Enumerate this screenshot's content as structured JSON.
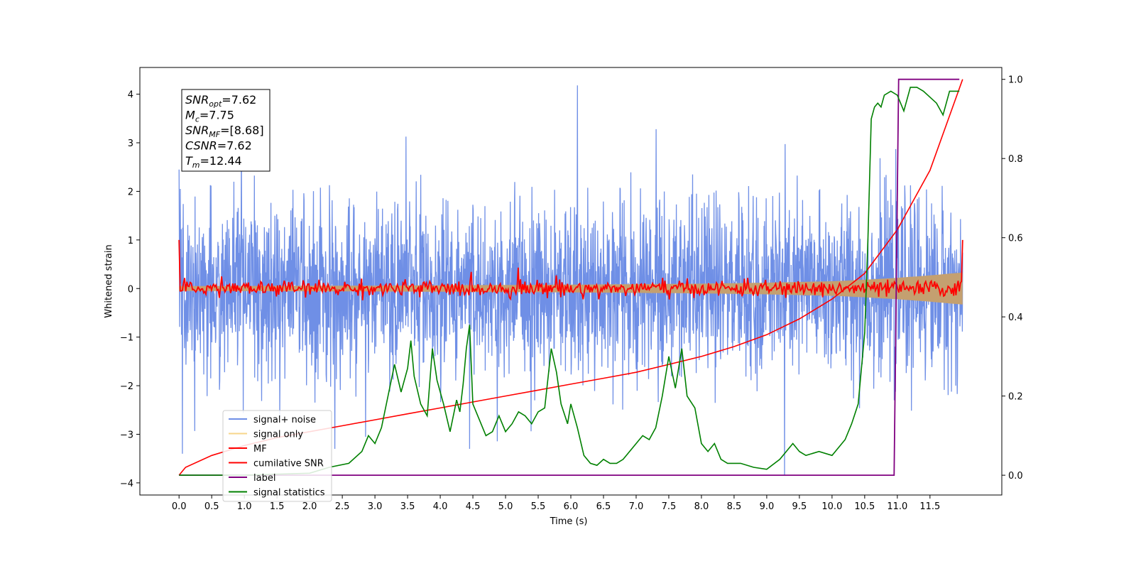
{
  "chart_data": {
    "type": "line",
    "xlabel": "Time (s)",
    "ylabel": "Whitened strain",
    "y2label": "",
    "xlim": [
      -0.6,
      12.6
    ],
    "ylim": [
      -4.25,
      4.55
    ],
    "y2lim": [
      -0.05,
      1.03
    ],
    "xticks": [
      "0.0",
      "0.5",
      "1.0",
      "1.5",
      "2.0",
      "2.5",
      "3.0",
      "3.5",
      "4.0",
      "4.5",
      "5.0",
      "5.5",
      "6.0",
      "6.5",
      "7.0",
      "7.5",
      "8.0",
      "8.5",
      "9.0",
      "9.5",
      "10.0",
      "10.5",
      "11.0",
      "11.5"
    ],
    "yticks": [
      "4",
      "3",
      "2",
      "1",
      "0",
      "−1",
      "−2",
      "−3",
      "−4"
    ],
    "y2ticks": [
      "1.0",
      "0.8",
      "0.6",
      "0.4",
      "0.2",
      "0.0"
    ],
    "grid": false,
    "legend_position": "lower-left",
    "annotation": {
      "lines": [
        {
          "name": "SNR",
          "sub": "opt",
          "value": "=7.62"
        },
        {
          "name": "M",
          "sub": "c",
          "value": "=7.75"
        },
        {
          "name": "SNR",
          "sub": "MF",
          "value": "=[8.68]"
        },
        {
          "name": "CSNR",
          "sub": "",
          "value": "=7.62"
        },
        {
          "name": "T",
          "sub": "m",
          "value": "=12.44"
        }
      ]
    },
    "series": [
      {
        "name": "signal+ noise",
        "color": "#6f8fe6",
        "axis": "left",
        "description_type": "noise",
        "x_range": [
          0.0,
          12.0
        ],
        "std": 0.9,
        "extremes": [
          [
            0.0,
            2.45
          ],
          [
            0.05,
            -3.4
          ],
          [
            6.1,
            4.18
          ],
          [
            9.27,
            -3.85
          ],
          [
            4.45,
            -3.3
          ],
          [
            10.95,
            -2.3
          ]
        ]
      },
      {
        "name": "signal only",
        "color": "#f0c060",
        "axis": "left",
        "x_range": [
          0.0,
          12.0
        ],
        "envelope": [
          [
            0.0,
            0.05
          ],
          [
            3.0,
            0.06
          ],
          [
            6.0,
            0.08
          ],
          [
            8.0,
            0.1
          ],
          [
            9.0,
            0.12
          ],
          [
            10.0,
            0.15
          ],
          [
            10.5,
            0.18
          ],
          [
            11.0,
            0.22
          ],
          [
            11.5,
            0.27
          ],
          [
            12.0,
            0.33
          ]
        ]
      },
      {
        "name": "MF",
        "color": "#ff0000",
        "axis": "left",
        "x_range": [
          0.0,
          12.0
        ],
        "start_value": 1.0,
        "end_value": 1.0,
        "std": 0.08,
        "spikes": [
          [
            5.2,
            0.43
          ],
          [
            5.78,
            0.27
          ],
          [
            0.65,
            0.25
          ],
          [
            3.68,
            -0.18
          ],
          [
            7.4,
            0.22
          ]
        ]
      },
      {
        "name": "cumilative SNR",
        "color": "#ff0000",
        "axis": "right",
        "x": [
          0.0,
          0.1,
          0.5,
          1.0,
          1.5,
          2.0,
          2.5,
          3.0,
          3.5,
          4.0,
          4.5,
          5.0,
          5.5,
          6.0,
          6.5,
          7.0,
          7.5,
          8.0,
          8.5,
          9.0,
          9.5,
          10.0,
          10.5,
          11.0,
          11.5,
          12.0
        ],
        "y": [
          0.0,
          0.02,
          0.05,
          0.075,
          0.095,
          0.11,
          0.125,
          0.14,
          0.155,
          0.17,
          0.185,
          0.2,
          0.215,
          0.23,
          0.245,
          0.26,
          0.28,
          0.3,
          0.325,
          0.355,
          0.395,
          0.445,
          0.51,
          0.62,
          0.77,
          1.0
        ]
      },
      {
        "name": "label",
        "color": "#800080",
        "axis": "right",
        "x": [
          0.0,
          10.95,
          11.02,
          11.95
        ],
        "y": [
          0.0,
          0.0,
          1.0,
          1.0
        ]
      },
      {
        "name": "signal statistics",
        "color": "#008000",
        "axis": "right",
        "x": [
          0.0,
          1.0,
          2.0,
          2.3,
          2.6,
          2.8,
          2.9,
          3.0,
          3.1,
          3.2,
          3.3,
          3.4,
          3.5,
          3.55,
          3.6,
          3.7,
          3.8,
          3.88,
          3.95,
          4.05,
          4.15,
          4.25,
          4.3,
          4.35,
          4.4,
          4.45,
          4.5,
          4.6,
          4.7,
          4.8,
          4.9,
          5.0,
          5.1,
          5.2,
          5.3,
          5.4,
          5.5,
          5.6,
          5.7,
          5.78,
          5.85,
          5.95,
          6.0,
          6.1,
          6.2,
          6.3,
          6.4,
          6.5,
          6.6,
          6.7,
          6.8,
          7.0,
          7.1,
          7.2,
          7.3,
          7.4,
          7.5,
          7.6,
          7.7,
          7.78,
          7.9,
          8.0,
          8.1,
          8.2,
          8.3,
          8.4,
          8.6,
          8.8,
          9.0,
          9.2,
          9.4,
          9.5,
          9.6,
          9.8,
          10.0,
          10.2,
          10.3,
          10.4,
          10.5,
          10.55,
          10.6,
          10.65,
          10.7,
          10.75,
          10.8,
          10.9,
          11.0,
          11.1,
          11.2,
          11.3,
          11.4,
          11.6,
          11.7,
          11.8,
          11.9,
          11.95
        ],
        "y": [
          0.0,
          0.0,
          0.005,
          0.02,
          0.03,
          0.06,
          0.1,
          0.08,
          0.12,
          0.2,
          0.28,
          0.21,
          0.27,
          0.34,
          0.25,
          0.18,
          0.15,
          0.32,
          0.24,
          0.18,
          0.11,
          0.19,
          0.16,
          0.23,
          0.32,
          0.38,
          0.18,
          0.14,
          0.1,
          0.11,
          0.15,
          0.11,
          0.13,
          0.16,
          0.15,
          0.13,
          0.16,
          0.17,
          0.32,
          0.26,
          0.18,
          0.13,
          0.18,
          0.12,
          0.05,
          0.03,
          0.025,
          0.04,
          0.03,
          0.03,
          0.04,
          0.08,
          0.1,
          0.09,
          0.12,
          0.2,
          0.3,
          0.22,
          0.32,
          0.2,
          0.17,
          0.08,
          0.06,
          0.08,
          0.04,
          0.03,
          0.03,
          0.02,
          0.015,
          0.04,
          0.08,
          0.06,
          0.05,
          0.06,
          0.05,
          0.09,
          0.13,
          0.18,
          0.36,
          0.6,
          0.9,
          0.93,
          0.94,
          0.93,
          0.96,
          0.97,
          0.96,
          0.92,
          0.98,
          0.98,
          0.97,
          0.94,
          0.91,
          0.97,
          0.97,
          0.97
        ]
      }
    ]
  }
}
